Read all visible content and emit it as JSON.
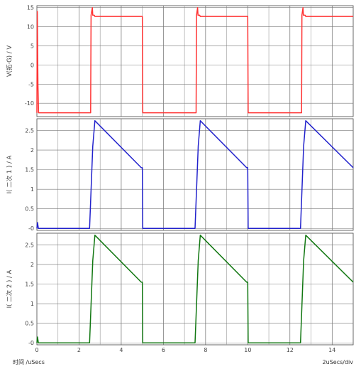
{
  "chart_data": [
    {
      "type": "line",
      "ylabel": "V(拓·G) / V",
      "yticks": [
        "15",
        "10",
        "5",
        "0",
        "-5",
        "-10"
      ],
      "ylim": [
        -13.5,
        15.5
      ],
      "xlim": [
        0,
        15
      ],
      "grid": true,
      "color": "#ff3333",
      "series": [
        {
          "x": [
            0,
            0.02,
            0.05,
            0.08,
            2.55,
            2.57,
            2.63,
            2.65,
            2.72,
            2.75,
            5.0,
            5.02,
            7.55,
            7.57,
            7.62,
            7.64,
            7.72,
            7.75,
            10.0,
            10.02,
            12.55,
            12.57,
            12.62,
            12.64,
            12.72,
            12.75,
            15.0
          ],
          "y": [
            -12.5,
            14,
            -5,
            -12.5,
            -12.5,
            13,
            15,
            13,
            13,
            12.7,
            12.7,
            -12.5,
            -12.5,
            13,
            15,
            13,
            13,
            12.7,
            12.7,
            -12.5,
            -12.5,
            13,
            15,
            13,
            13,
            12.7,
            12.7
          ]
        }
      ]
    },
    {
      "type": "line",
      "ylabel": "I(    二次 1    ) / A",
      "yticks": [
        "2.5",
        "2",
        "1.5",
        "1",
        "0.5",
        "-0"
      ],
      "ylim": [
        -0.05,
        2.8
      ],
      "xlim": [
        0,
        15
      ],
      "grid": true,
      "color": "#2222cc",
      "series": [
        {
          "x": [
            0,
            0.03,
            0.07,
            2.5,
            2.65,
            2.75,
            4.95,
            5.0,
            5.02,
            7.5,
            7.65,
            7.75,
            9.95,
            10.0,
            10.02,
            12.5,
            12.65,
            12.75,
            15.0
          ],
          "y": [
            0,
            0.15,
            0,
            0,
            2.1,
            2.75,
            1.55,
            1.55,
            0,
            0,
            2.1,
            2.75,
            1.55,
            1.55,
            0,
            0,
            2.1,
            2.75,
            1.55
          ]
        }
      ]
    },
    {
      "type": "line",
      "ylabel": "I(    二次 2    ) / A",
      "yticks": [
        "2.5",
        "2",
        "1.5",
        "1",
        "0.5",
        "-0"
      ],
      "ylim": [
        -0.05,
        2.8
      ],
      "xlim": [
        0,
        15
      ],
      "grid": true,
      "color": "#117711",
      "series": [
        {
          "x": [
            0,
            0.03,
            0.07,
            2.5,
            2.65,
            2.75,
            4.95,
            5.0,
            5.02,
            7.5,
            7.65,
            7.75,
            9.95,
            10.0,
            10.02,
            12.5,
            12.65,
            12.75,
            15.0
          ],
          "y": [
            0,
            0.15,
            0,
            0,
            2.1,
            2.75,
            1.55,
            1.55,
            0,
            0,
            2.1,
            2.75,
            1.55,
            1.55,
            0,
            0,
            2.1,
            2.75,
            1.55
          ]
        }
      ]
    }
  ],
  "x_axis": {
    "ticks": [
      "0",
      "2",
      "4",
      "6",
      "8",
      "10",
      "12",
      "14"
    ],
    "label": "时间 /uSecs",
    "div_label": "2uSecs/div"
  }
}
